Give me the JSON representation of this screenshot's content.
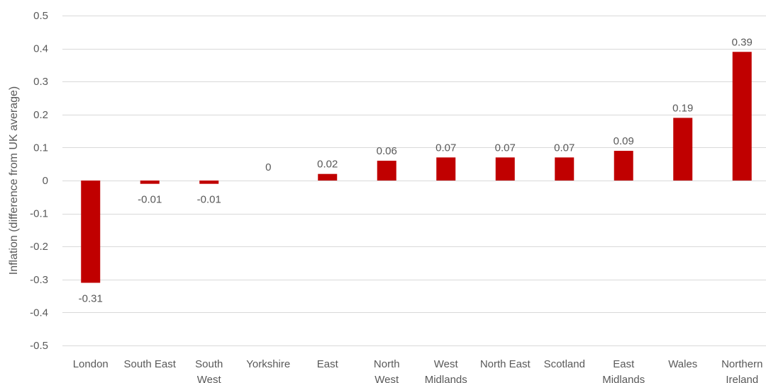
{
  "chart_data": {
    "type": "bar",
    "title": "",
    "xlabel": "",
    "ylabel": "Inflation (difference from UK average)",
    "ylim": [
      -0.5,
      0.5
    ],
    "yticks": [
      0.5,
      0.4,
      0.3,
      0.2,
      0.1,
      0,
      -0.1,
      -0.2,
      -0.3,
      -0.4,
      -0.5
    ],
    "ytick_labels": [
      "0.5",
      "0.4",
      "0.3",
      "0.2",
      "0.1",
      "0",
      "-0.1",
      "-0.2",
      "-0.3",
      "-0.4",
      "-0.5"
    ],
    "grid": true,
    "bar_color": "#c00000",
    "categories": [
      [
        "London"
      ],
      [
        "South East"
      ],
      [
        "South",
        "West"
      ],
      [
        "Yorkshire"
      ],
      [
        "East"
      ],
      [
        "North",
        "West"
      ],
      [
        "West",
        "Midlands"
      ],
      [
        "North East"
      ],
      [
        "Scotland"
      ],
      [
        "East",
        "Midlands"
      ],
      [
        "Wales"
      ],
      [
        "Northern",
        "Ireland"
      ]
    ],
    "values": [
      -0.31,
      -0.01,
      -0.01,
      0,
      0.02,
      0.06,
      0.07,
      0.07,
      0.07,
      0.09,
      0.19,
      0.39
    ],
    "data_labels": [
      "-0.31",
      "-0.01",
      "-0.01",
      "0",
      "0.02",
      "0.06",
      "0.07",
      "0.07",
      "0.07",
      "0.09",
      "0.19",
      "0.39"
    ]
  }
}
